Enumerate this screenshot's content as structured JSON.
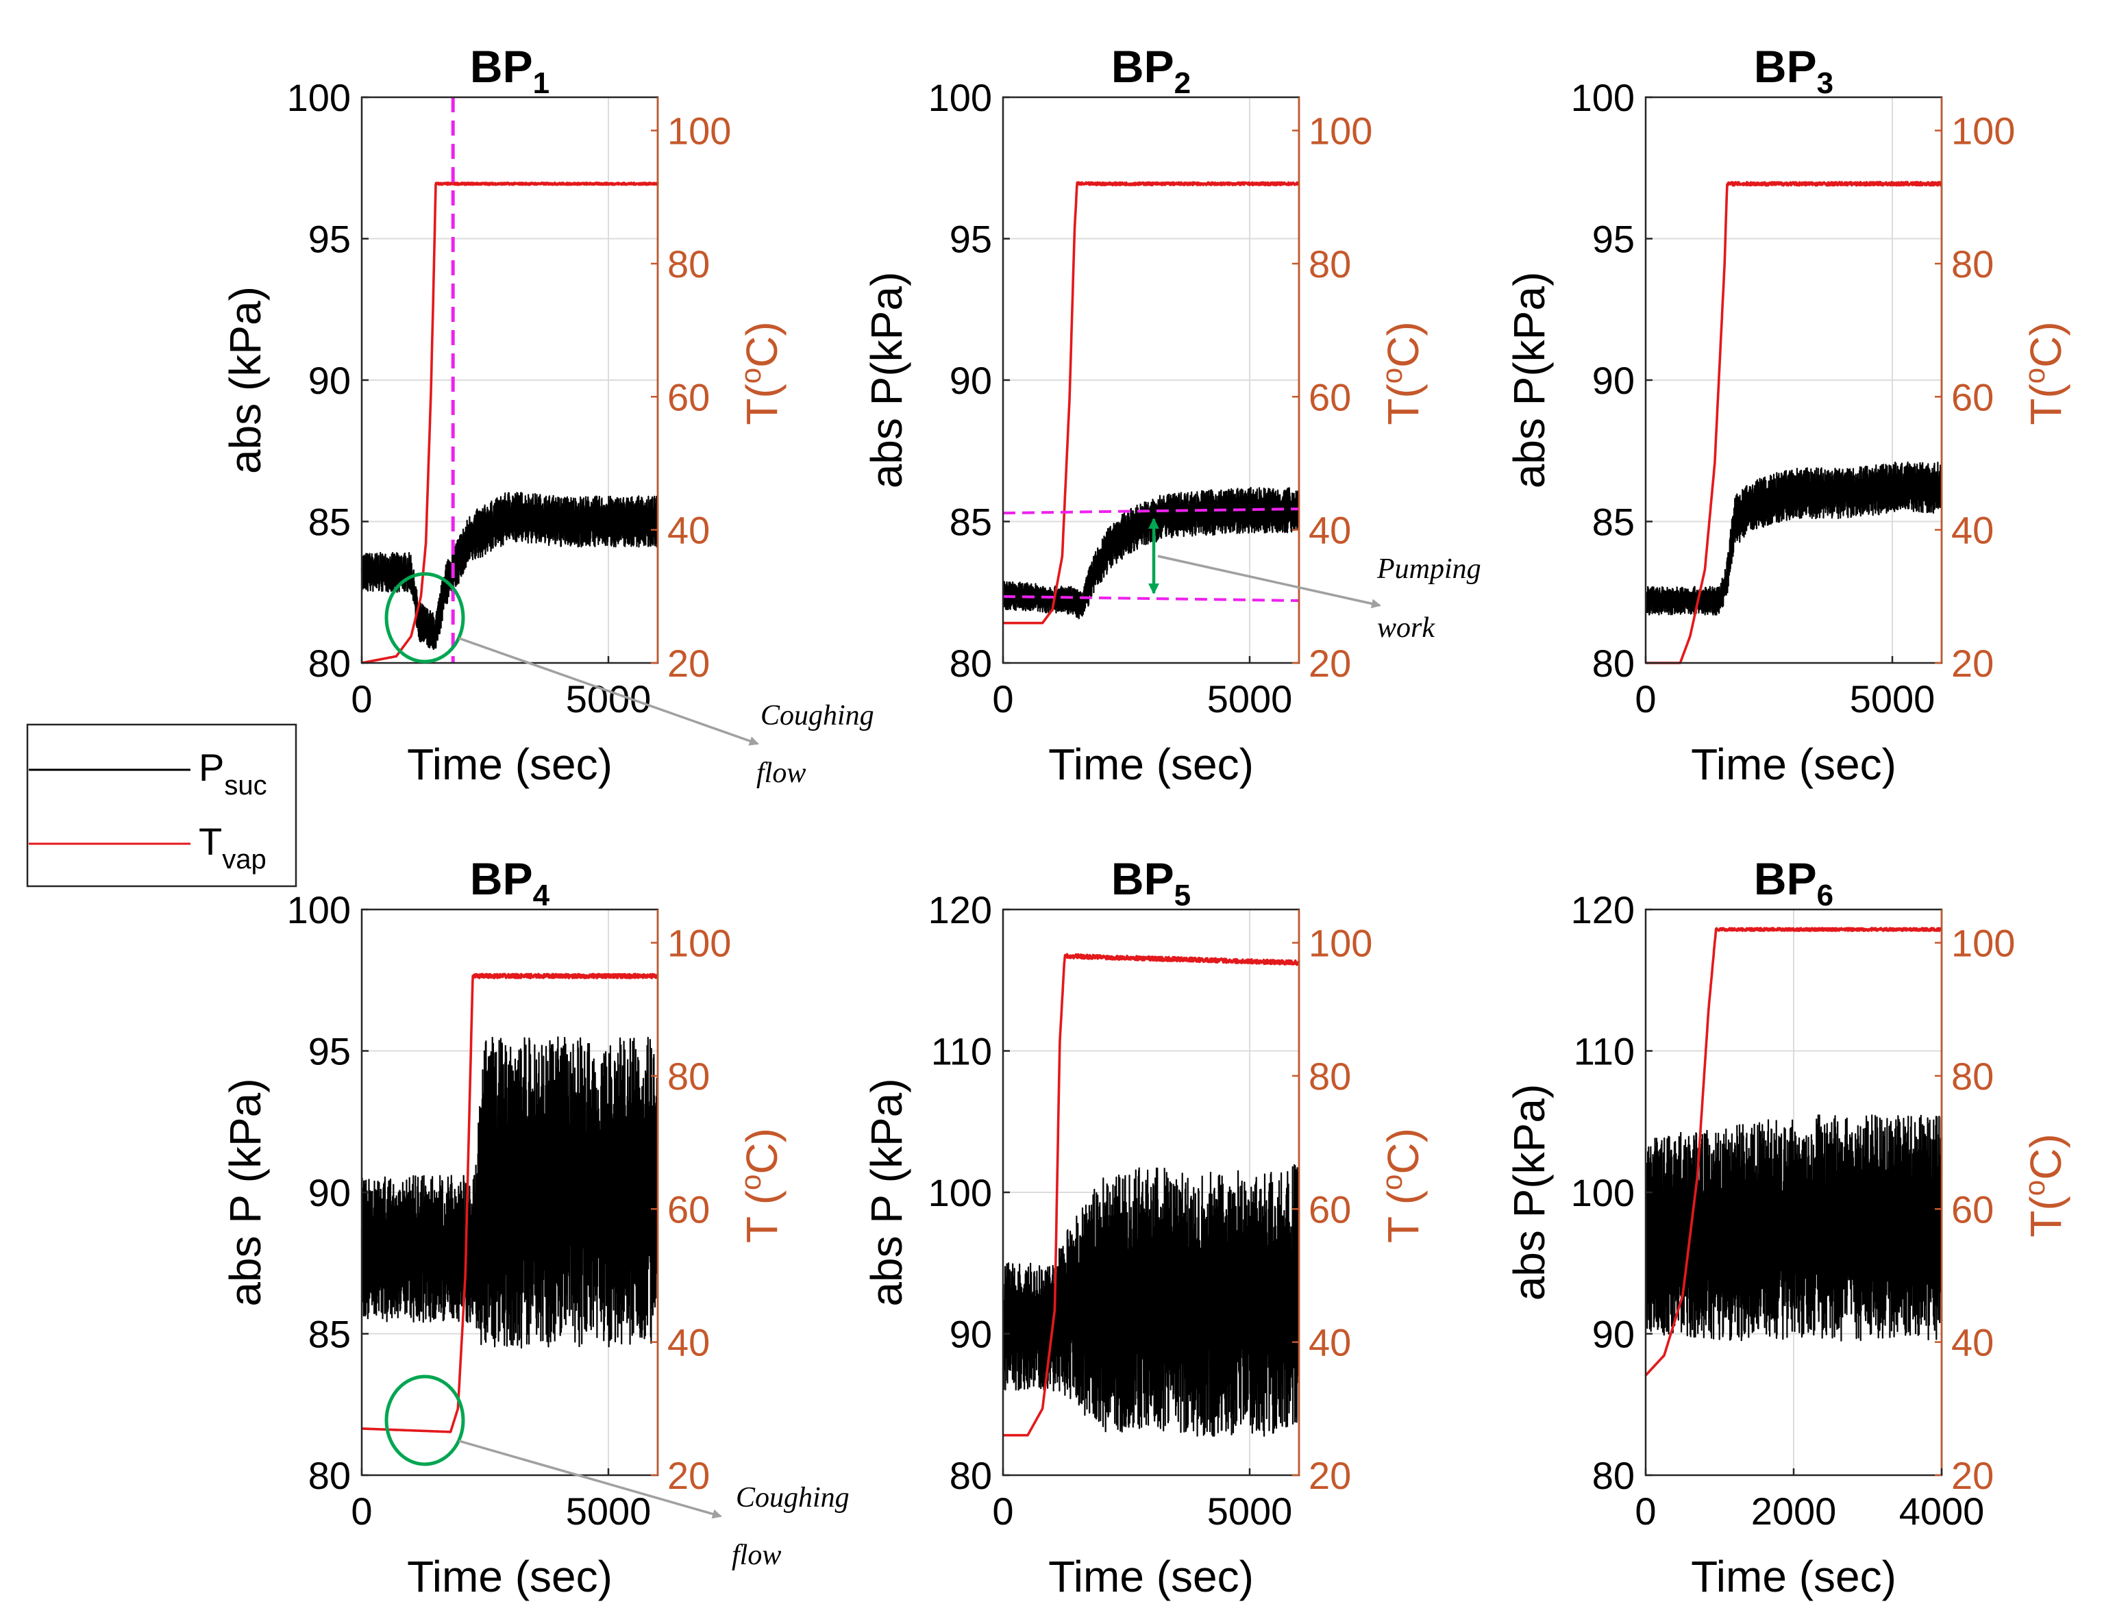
{
  "figure": {
    "legend": {
      "entries": [
        {
          "label": "P",
          "sub": "suc",
          "color": "#000000"
        },
        {
          "label": "T",
          "sub": "vap",
          "color": "#E3191C"
        }
      ]
    },
    "colors": {
      "pressure": "#000000",
      "temperature": "#E3191C",
      "right_axis": "#C5582B",
      "highlight": "#00A651",
      "marker": "#EE22EE",
      "arrow": "#A0A0A0"
    }
  },
  "chart_data": [
    {
      "id": "bp1",
      "type": "line",
      "title": "BP",
      "title_sub": "1",
      "xlabel": "Time (sec)",
      "ylabel": "abs (kPa)",
      "ylabel2": "T(",
      "ylabel2_sup": "o",
      "ylabel2_tail": "C)",
      "xlim": [
        0,
        6000
      ],
      "ylim": [
        80,
        100
      ],
      "ylim2": [
        20,
        105
      ],
      "xticks": [
        "0",
        "5000"
      ],
      "yticks": [
        "80",
        "85",
        "90",
        "95",
        "100"
      ],
      "yticks2": [
        "20",
        "40",
        "60",
        "80",
        "100"
      ],
      "series": [
        {
          "name": "Psuc",
          "axis": "left",
          "x": [
            0,
            1000,
            1150,
            1300,
            1500,
            1700,
            2200,
            3000,
            4000,
            5000,
            6000
          ],
          "values": [
            83.2,
            83.2,
            81.5,
            81.3,
            81.0,
            82.8,
            84.4,
            85.2,
            85.0,
            85.0,
            85.0
          ],
          "noise": [
            0.7,
            0.7,
            0.7,
            0.7,
            0.7,
            0.8,
            0.9,
            0.9,
            0.9,
            0.9,
            0.9
          ]
        },
        {
          "name": "Tvap",
          "axis": "right",
          "x": [
            0,
            700,
            1000,
            1200,
            1300,
            1400,
            1450,
            1500,
            6000
          ],
          "values": [
            20,
            21,
            24,
            30,
            38,
            60,
            75,
            92,
            92
          ],
          "noise": [
            0,
            0,
            0,
            0,
            0,
            0,
            0,
            0.15,
            0.15
          ]
        }
      ],
      "vlines": [
        1850
      ],
      "annotations": [
        {
          "text": "Coughing",
          "kind": "circle-arrow"
        },
        {
          "text": "flow",
          "kind": "text"
        }
      ]
    },
    {
      "id": "bp2",
      "type": "line",
      "title": "BP",
      "title_sub": "2",
      "xlabel": "Time (sec)",
      "ylabel": "abs P(kPa)",
      "ylabel2": "T(",
      "ylabel2_sup": "o",
      "ylabel2_tail": "C)",
      "xlim": [
        0,
        6000
      ],
      "ylim": [
        80,
        100
      ],
      "ylim2": [
        20,
        105
      ],
      "xticks": [
        "0",
        "5000"
      ],
      "yticks": [
        "80",
        "85",
        "90",
        "95",
        "100"
      ],
      "yticks2": [
        "20",
        "40",
        "60",
        "80",
        "100"
      ],
      "series": [
        {
          "name": "Psuc",
          "axis": "left",
          "x": [
            0,
            1400,
            1600,
            1800,
            2200,
            2700,
            3300,
            4000,
            5000,
            6000
          ],
          "values": [
            82.4,
            82.2,
            82.0,
            83.0,
            84.2,
            84.8,
            85.2,
            85.3,
            85.4,
            85.4
          ],
          "noise": [
            0.5,
            0.5,
            0.5,
            0.7,
            0.8,
            0.8,
            0.8,
            0.8,
            0.8,
            0.8
          ]
        },
        {
          "name": "Tvap",
          "axis": "right",
          "x": [
            0,
            800,
            1000,
            1200,
            1350,
            1450,
            1500,
            6000
          ],
          "values": [
            26,
            26,
            28,
            36,
            60,
            85,
            92,
            92
          ],
          "noise": [
            0,
            0,
            0,
            0,
            0,
            0,
            0.2,
            0.2
          ]
        }
      ],
      "hlines": [
        85.3,
        82.3
      ],
      "annotations": [
        {
          "text": "Pumping",
          "kind": "double-arrow"
        },
        {
          "text": "work",
          "kind": "text"
        }
      ]
    },
    {
      "id": "bp3",
      "type": "line",
      "title": "BP",
      "title_sub": "3",
      "xlabel": "Time (sec)",
      "ylabel": "abs P(kPa)",
      "ylabel2": "T(",
      "ylabel2_sup": "o",
      "ylabel2_tail": "C)",
      "xlim": [
        0,
        6000
      ],
      "ylim": [
        80,
        100
      ],
      "ylim2": [
        20,
        105
      ],
      "xticks": [
        "0",
        "5000"
      ],
      "yticks": [
        "80",
        "85",
        "90",
        "95",
        "100"
      ],
      "yticks2": [
        "20",
        "40",
        "60",
        "80",
        "100"
      ],
      "series": [
        {
          "name": "Psuc",
          "axis": "left",
          "x": [
            0,
            1500,
            1650,
            1800,
            2200,
            3000,
            4000,
            5000,
            6000
          ],
          "values": [
            82.2,
            82.2,
            83.0,
            85.0,
            85.6,
            86.0,
            86.0,
            86.2,
            86.2
          ],
          "noise": [
            0.5,
            0.5,
            0.7,
            0.9,
            0.9,
            0.9,
            0.9,
            0.9,
            0.9
          ]
        },
        {
          "name": "Tvap",
          "axis": "right",
          "x": [
            0,
            700,
            900,
            1200,
            1400,
            1600,
            1650,
            6000
          ],
          "values": [
            20,
            20,
            24,
            34,
            50,
            80,
            92,
            92
          ],
          "noise": [
            0,
            0,
            0,
            0,
            0,
            0,
            0.25,
            0.25
          ]
        }
      ]
    },
    {
      "id": "bp4",
      "type": "line",
      "title": "BP",
      "title_sub": "4",
      "xlabel": "Time (sec)",
      "ylabel": "abs P (kPa)",
      "ylabel2": "T (",
      "ylabel2_sup": "o",
      "ylabel2_tail": "C)",
      "xlim": [
        0,
        6000
      ],
      "ylim": [
        80,
        100
      ],
      "ylim2": [
        20,
        105
      ],
      "xticks": [
        "0",
        "5000"
      ],
      "yticks": [
        "80",
        "85",
        "90",
        "95",
        "100"
      ],
      "yticks2": [
        "20",
        "40",
        "60",
        "80",
        "100"
      ],
      "series": [
        {
          "name": "Psuc",
          "axis": "left",
          "x": [
            0,
            2300,
            2400,
            2500,
            6000
          ],
          "values": [
            88.0,
            88.0,
            89.0,
            90.0,
            90.0
          ],
          "noise": [
            2.6,
            2.6,
            4.5,
            5.5,
            5.5
          ]
        },
        {
          "name": "Tvap",
          "axis": "right",
          "x": [
            0,
            1800,
            1950,
            2100,
            2200,
            2250,
            6000
          ],
          "values": [
            27,
            26.5,
            30,
            50,
            80,
            95,
            95
          ],
          "noise": [
            0,
            0,
            0,
            0,
            0,
            0.3,
            0.3
          ]
        }
      ],
      "annotations": [
        {
          "text": "Coughing",
          "kind": "circle-arrow"
        },
        {
          "text": "flow",
          "kind": "text"
        }
      ]
    },
    {
      "id": "bp5",
      "type": "line",
      "title": "BP",
      "title_sub": "5",
      "xlabel": "Time (sec)",
      "ylabel": "abs P (kPa)",
      "ylabel2": "T (",
      "ylabel2_sup": "o",
      "ylabel2_tail": "C)",
      "xlim": [
        0,
        6000
      ],
      "ylim": [
        80,
        120
      ],
      "ylim2": [
        20,
        105
      ],
      "xticks": [
        "0",
        "5000"
      ],
      "yticks": [
        "80",
        "90",
        "100",
        "110",
        "120"
      ],
      "yticks2": [
        "20",
        "40",
        "60",
        "80",
        "100"
      ],
      "series": [
        {
          "name": "Psuc",
          "axis": "left",
          "x": [
            0,
            1000,
            1300,
            2000,
            3000,
            4500,
            6000
          ],
          "values": [
            90.5,
            90.5,
            91.5,
            92.0,
            92.5,
            92.0,
            92.5
          ],
          "noise": [
            4.5,
            4.5,
            6.0,
            9.0,
            9.5,
            9.5,
            9.5
          ]
        },
        {
          "name": "Tvap",
          "axis": "right",
          "x": [
            0,
            500,
            800,
            1050,
            1150,
            1250,
            6000
          ],
          "values": [
            26,
            26,
            30,
            45,
            85,
            98,
            97
          ],
          "noise": [
            0,
            0,
            0,
            0,
            0,
            0.3,
            0.3
          ]
        }
      ]
    },
    {
      "id": "bp6",
      "type": "line",
      "title": "BP",
      "title_sub": "6",
      "xlabel": "Time (sec)",
      "ylabel": "abs P(kPa)",
      "ylabel2": "T(",
      "ylabel2_sup": "o",
      "ylabel2_tail": "C)",
      "xlim": [
        0,
        4000
      ],
      "ylim": [
        80,
        120
      ],
      "ylim2": [
        20,
        105
      ],
      "xticks": [
        "0",
        "2000",
        "4000"
      ],
      "yticks": [
        "80",
        "90",
        "100",
        "110",
        "120"
      ],
      "yticks2": [
        "20",
        "40",
        "60",
        "80",
        "100"
      ],
      "series": [
        {
          "name": "Psuc",
          "axis": "left",
          "x": [
            0,
            1000,
            2000,
            3000,
            4000
          ],
          "values": [
            97.0,
            97.0,
            97.5,
            97.5,
            97.5
          ],
          "noise": [
            7.0,
            7.5,
            8.0,
            8.0,
            8.0
          ]
        },
        {
          "name": "Tvap",
          "axis": "right",
          "x": [
            0,
            250,
            500,
            700,
            850,
            950,
            4000
          ],
          "values": [
            35,
            38,
            47,
            65,
            90,
            102,
            102
          ],
          "noise": [
            0,
            0,
            0,
            0,
            0,
            0.2,
            0.2
          ]
        }
      ]
    }
  ]
}
